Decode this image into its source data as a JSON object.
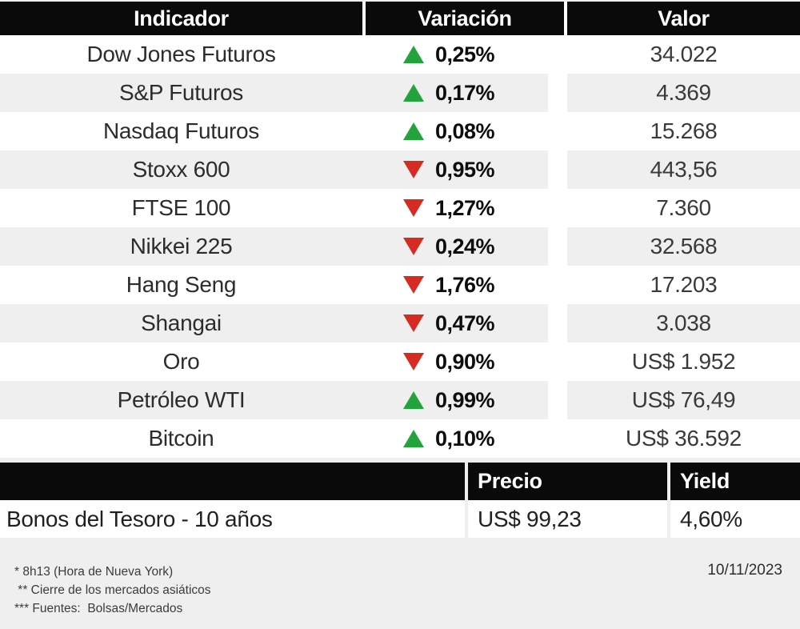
{
  "colors": {
    "up": "#23a33c",
    "down": "#d42b23",
    "header_bg": "#0a0a0a",
    "row_alt": "#efefef"
  },
  "table1": {
    "headers": {
      "indicator": "Indicador",
      "variation": "Variación",
      "value": "Valor"
    },
    "rows": [
      {
        "name": "Dow Jones Futuros",
        "direction": "up",
        "variation": "0,25%",
        "value": "34.022"
      },
      {
        "name": "S&P Futuros",
        "direction": "up",
        "variation": "0,17%",
        "value": "4.369"
      },
      {
        "name": "Nasdaq Futuros",
        "direction": "up",
        "variation": "0,08%",
        "value": "15.268"
      },
      {
        "name": "Stoxx 600",
        "direction": "down",
        "variation": "0,95%",
        "value": "443,56"
      },
      {
        "name": "FTSE 100",
        "direction": "down",
        "variation": "1,27%",
        "value": "7.360"
      },
      {
        "name": "Nikkei 225",
        "direction": "down",
        "variation": "0,24%",
        "value": "32.568"
      },
      {
        "name": "Hang Seng",
        "direction": "down",
        "variation": "1,76%",
        "value": "17.203"
      },
      {
        "name": "Shangai",
        "direction": "down",
        "variation": "0,47%",
        "value": "3.038"
      },
      {
        "name": "Oro",
        "direction": "down",
        "variation": "0,90%",
        "value": "US$ 1.952"
      },
      {
        "name": "Petróleo WTI",
        "direction": "up",
        "variation": "0,99%",
        "value": "US$ 76,49"
      },
      {
        "name": "Bitcoin",
        "direction": "up",
        "variation": "0,10%",
        "value": "US$ 36.592"
      }
    ]
  },
  "table2": {
    "headers": {
      "blank": "",
      "price": "Precio",
      "yield": "Yield"
    },
    "row": {
      "name": "Bonos del Tesoro - 10 años",
      "price": "US$ 99,23",
      "yield": "4,60%"
    }
  },
  "footer": {
    "notes": [
      "* 8h13 (Hora de Nueva York)",
      " ** Cierre de los mercados asiáticos",
      "*** Fuentes:  Bolsas/Mercados"
    ],
    "date": "10/11/2023"
  },
  "chart_data": {
    "type": "table",
    "title": "Indicadores de mercado",
    "columns": [
      "Indicador",
      "Variación",
      "Valor"
    ],
    "rows": [
      [
        "Dow Jones Futuros",
        "+0,25%",
        "34.022"
      ],
      [
        "S&P Futuros",
        "+0,17%",
        "4.369"
      ],
      [
        "Nasdaq Futuros",
        "+0,08%",
        "15.268"
      ],
      [
        "Stoxx 600",
        "-0,95%",
        "443,56"
      ],
      [
        "FTSE 100",
        "-1,27%",
        "7.360"
      ],
      [
        "Nikkei 225",
        "-0,24%",
        "32.568"
      ],
      [
        "Hang Seng",
        "-1,76%",
        "17.203"
      ],
      [
        "Shangai",
        "-0,47%",
        "3.038"
      ],
      [
        "Oro",
        "-0,90%",
        "US$ 1.952"
      ],
      [
        "Petróleo WTI",
        "+0,99%",
        "US$ 76,49"
      ],
      [
        "Bitcoin",
        "+0,10%",
        "US$ 36.592"
      ]
    ],
    "secondary_table": {
      "columns": [
        "",
        "Precio",
        "Yield"
      ],
      "rows": [
        [
          "Bonos del Tesoro - 10 años",
          "US$ 99,23",
          "4,60%"
        ]
      ]
    },
    "annotations": [
      "* 8h13 (Hora de Nueva York)",
      "** Cierre de los mercados asiáticos",
      "*** Fuentes: Bolsas/Mercados",
      "10/11/2023"
    ]
  }
}
